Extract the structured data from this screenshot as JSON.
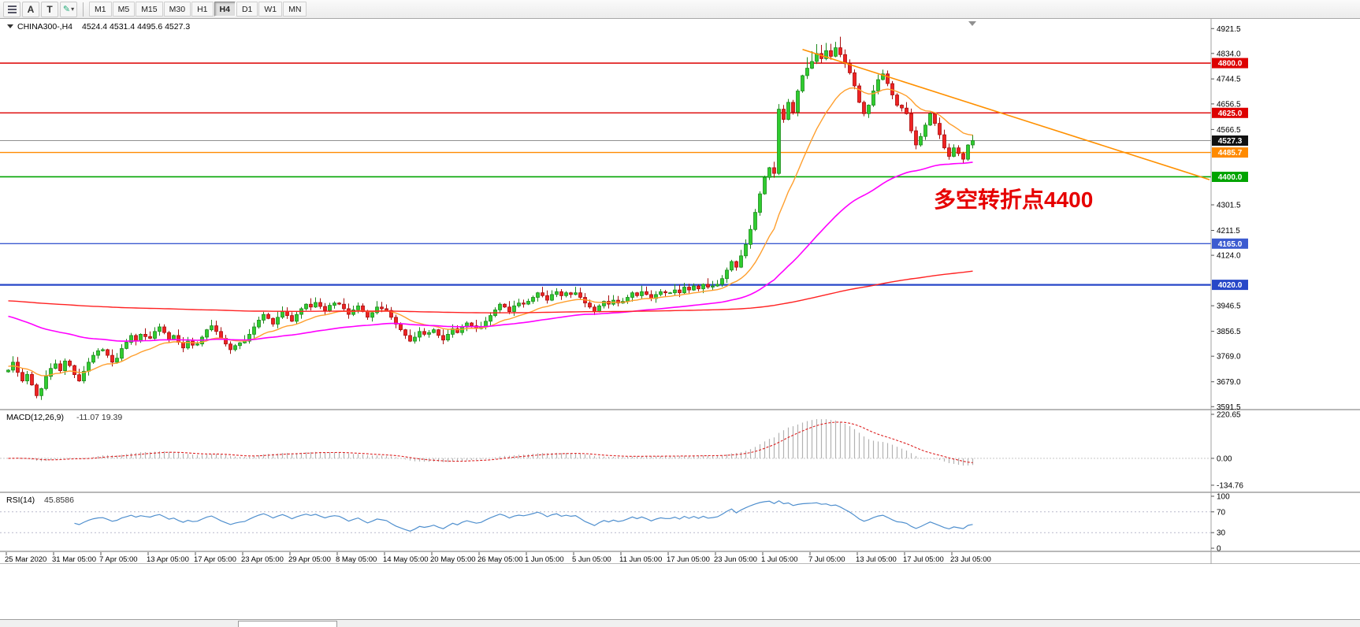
{
  "toolbar": {
    "buttons": [
      "A",
      "T"
    ],
    "timeframes": [
      "M1",
      "M5",
      "M15",
      "M30",
      "H1",
      "H4",
      "D1",
      "W1",
      "MN"
    ],
    "active_timeframe": "H4"
  },
  "chart_header": {
    "symbol_period": "CHINA300-,H4",
    "ohlc": "4524.4 4531.4 4495.6 4527.3"
  },
  "annotation": {
    "text": "多空转折点4400",
    "color": "#e60000"
  },
  "macd": {
    "title": "MACD(12,26,9)",
    "values": "-11.07 19.39",
    "axis_ticks": [
      "220.65",
      "0.00",
      "-134.76"
    ],
    "fast": 12,
    "slow": 26,
    "signal": 9
  },
  "rsi": {
    "title": "RSI(14)",
    "value": "45.8586",
    "axis_ticks": [
      "100",
      "70",
      "30",
      "0"
    ],
    "period": 14,
    "levels": [
      70,
      30
    ]
  },
  "price_axis_ticks": [
    "4921.5",
    "4834.0",
    "4744.5",
    "4656.5",
    "4566.5",
    "4301.5",
    "4211.5",
    "4124.0",
    "3946.5",
    "3856.5",
    "3769.0",
    "3679.0",
    "3591.5"
  ],
  "time_axis_labels": [
    "25 Mar 2020",
    "31 Mar 05:00",
    "7 Apr 05:00",
    "13 Apr 05:00",
    "17 Apr 05:00",
    "23 Apr 05:00",
    "29 Apr 05:00",
    "8 May 05:00",
    "14 May 05:00",
    "20 May 05:00",
    "26 May 05:00",
    "1 Jun 05:00",
    "5 Jun 05:00",
    "11 Jun 05:00",
    "17 Jun 05:00",
    "23 Jun 05:00",
    "1 Jul 05:00",
    "7 Jul 05:00",
    "13 Jul 05:00",
    "17 Jul 05:00",
    "23 Jul 05:00"
  ],
  "levels": [
    {
      "price": 4800.0,
      "label": "4800.0",
      "color": "#dd0000",
      "width": 1.4
    },
    {
      "price": 4625.0,
      "label": "4625.0",
      "color": "#dd0000",
      "width": 1.4
    },
    {
      "price": 4527.3,
      "label": "4527.3",
      "color": "#909090",
      "badge_bg": "#111111",
      "width": 1
    },
    {
      "price": 4485.7,
      "label": "4485.7",
      "color": "#ff8a00",
      "width": 1.4
    },
    {
      "price": 4400.0,
      "label": "4400.0",
      "color": "#00a400",
      "width": 1.6
    },
    {
      "price": 4165.0,
      "label": "4165.0",
      "color": "#3c5bd0",
      "width": 1.4
    },
    {
      "price": 4020.0,
      "label": "4020.0",
      "color": "#2747c8",
      "width": 2.2
    }
  ],
  "chart_data": {
    "type": "candlestick",
    "symbol": "CHINA300-",
    "period": "H4",
    "title": "CHINA300-,H4 4524.4 4531.4 4495.6 4527.3",
    "y_range": [
      3591.5,
      4921.5
    ],
    "bars_per_label": 10,
    "up_color": "#2fcc2f",
    "up_stroke": "#1d8a1d",
    "down_color": "#ee2222",
    "down_stroke": "#a80f0f",
    "closes": [
      3720,
      3748,
      3712,
      3682,
      3705,
      3668,
      3630,
      3655,
      3698,
      3726,
      3742,
      3718,
      3752,
      3736,
      3704,
      3682,
      3716,
      3748,
      3772,
      3788,
      3792,
      3772,
      3748,
      3762,
      3796,
      3818,
      3842,
      3822,
      3846,
      3838,
      3832,
      3856,
      3872,
      3852,
      3828,
      3842,
      3818,
      3798,
      3822,
      3808,
      3812,
      3836,
      3862,
      3876,
      3856,
      3832,
      3812,
      3792,
      3806,
      3816,
      3822,
      3846,
      3872,
      3896,
      3916,
      3902,
      3882,
      3906,
      3926,
      3912,
      3892,
      3916,
      3936,
      3952,
      3942,
      3958,
      3944,
      3930,
      3948,
      3956,
      3952,
      3936,
      3916,
      3932,
      3946,
      3926,
      3906,
      3922,
      3942,
      3936,
      3930,
      3906,
      3882,
      3862,
      3842,
      3822,
      3836,
      3856,
      3846,
      3852,
      3862,
      3842,
      3826,
      3846,
      3866,
      3852,
      3872,
      3886,
      3876,
      3866,
      3872,
      3892,
      3912,
      3932,
      3952,
      3942,
      3926,
      3946,
      3956,
      3952,
      3962,
      3976,
      3992,
      3982,
      3966,
      3986,
      3996,
      3982,
      3992,
      3986,
      3992,
      3976,
      3956,
      3942,
      3926,
      3946,
      3962,
      3952,
      3966,
      3956,
      3962,
      3976,
      3992,
      3982,
      3996,
      3986,
      3972,
      3986,
      3996,
      3992,
      3992,
      4002,
      3992,
      4012,
      4002,
      4016,
      4006,
      4022,
      4012,
      4016,
      4022,
      4042,
      4072,
      4102,
      4082,
      4122,
      4162,
      4215,
      4275,
      4340,
      4398,
      4432,
      4412,
      4638,
      4602,
      4662,
      4628,
      4702,
      4756,
      4782,
      4806,
      4834,
      4816,
      4844,
      4824,
      4854,
      4830,
      4798,
      4766,
      4720,
      4662,
      4622,
      4652,
      4702,
      4742,
      4762,
      4728,
      4688,
      4652,
      4642,
      4622,
      4562,
      4512,
      4542,
      4582,
      4622,
      4588,
      4548,
      4502,
      4472,
      4502,
      4482,
      4462,
      4512,
      4527.3
    ],
    "overlays": [
      {
        "name": "fast-ma",
        "period": 16,
        "seed": 3735,
        "color": "#ff9f2e"
      },
      {
        "name": "mid-ma",
        "period": 70,
        "seed": 3915,
        "color": "#ff00ff"
      },
      {
        "name": "slow-ma",
        "period": 450,
        "seed": 3965,
        "color": "#ff2222"
      }
    ],
    "trendline": {
      "color": "#ff9000",
      "from_bar": 168,
      "from_price": 4848,
      "to_x": 1535,
      "to_price": 4390
    }
  }
}
